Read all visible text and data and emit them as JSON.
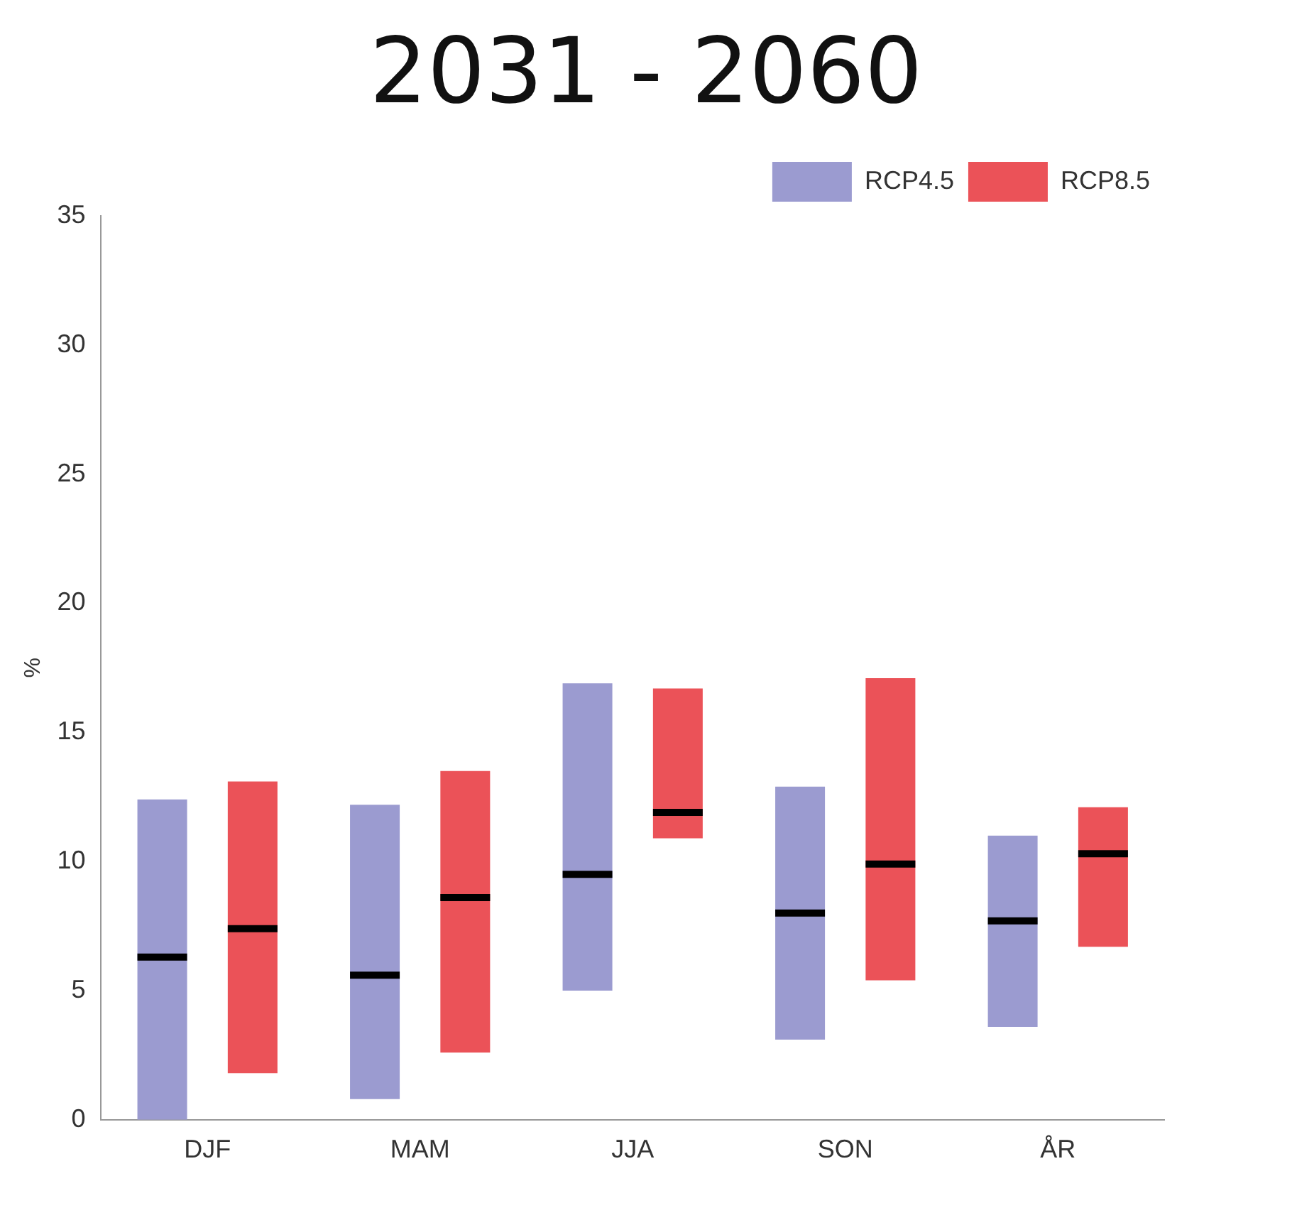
{
  "chart_data": {
    "type": "box",
    "title": "2031 - 2060",
    "ylabel": "%",
    "categories": [
      "DJF",
      "MAM",
      "JJA",
      "SON",
      "ÅR"
    ],
    "series": [
      {
        "name": "RCP4.5",
        "color": "#9b9bd0",
        "boxes": [
          {
            "low": 0,
            "q1": 0,
            "median": 6.3,
            "q3": 12.4,
            "high": 12.4
          },
          {
            "low": 0.8,
            "q1": 0.8,
            "median": 5.6,
            "q3": 12.2,
            "high": 12.2
          },
          {
            "low": 5.0,
            "q1": 5.0,
            "median": 9.5,
            "q3": 16.9,
            "high": 16.9
          },
          {
            "low": 3.1,
            "q1": 3.1,
            "median": 8.0,
            "q3": 12.9,
            "high": 12.9
          },
          {
            "low": 3.6,
            "q1": 3.6,
            "median": 7.7,
            "q3": 11.0,
            "high": 11.0
          }
        ]
      },
      {
        "name": "RCP8.5",
        "color": "#eb5258",
        "boxes": [
          {
            "low": 1.8,
            "q1": 1.8,
            "median": 7.4,
            "q3": 13.1,
            "high": 13.1
          },
          {
            "low": 2.6,
            "q1": 2.6,
            "median": 8.6,
            "q3": 13.5,
            "high": 13.5
          },
          {
            "low": 10.9,
            "q1": 10.9,
            "median": 11.9,
            "q3": 16.7,
            "high": 16.7
          },
          {
            "low": 5.4,
            "q1": 5.4,
            "median": 9.9,
            "q3": 17.1,
            "high": 17.1
          },
          {
            "low": 6.7,
            "q1": 6.7,
            "median": 10.3,
            "q3": 12.1,
            "high": 12.1
          }
        ]
      }
    ],
    "ylim": [
      0,
      35
    ],
    "yticks": [
      0,
      5,
      10,
      15,
      20,
      25,
      30,
      35
    ],
    "grid": false,
    "legend": "top right"
  }
}
